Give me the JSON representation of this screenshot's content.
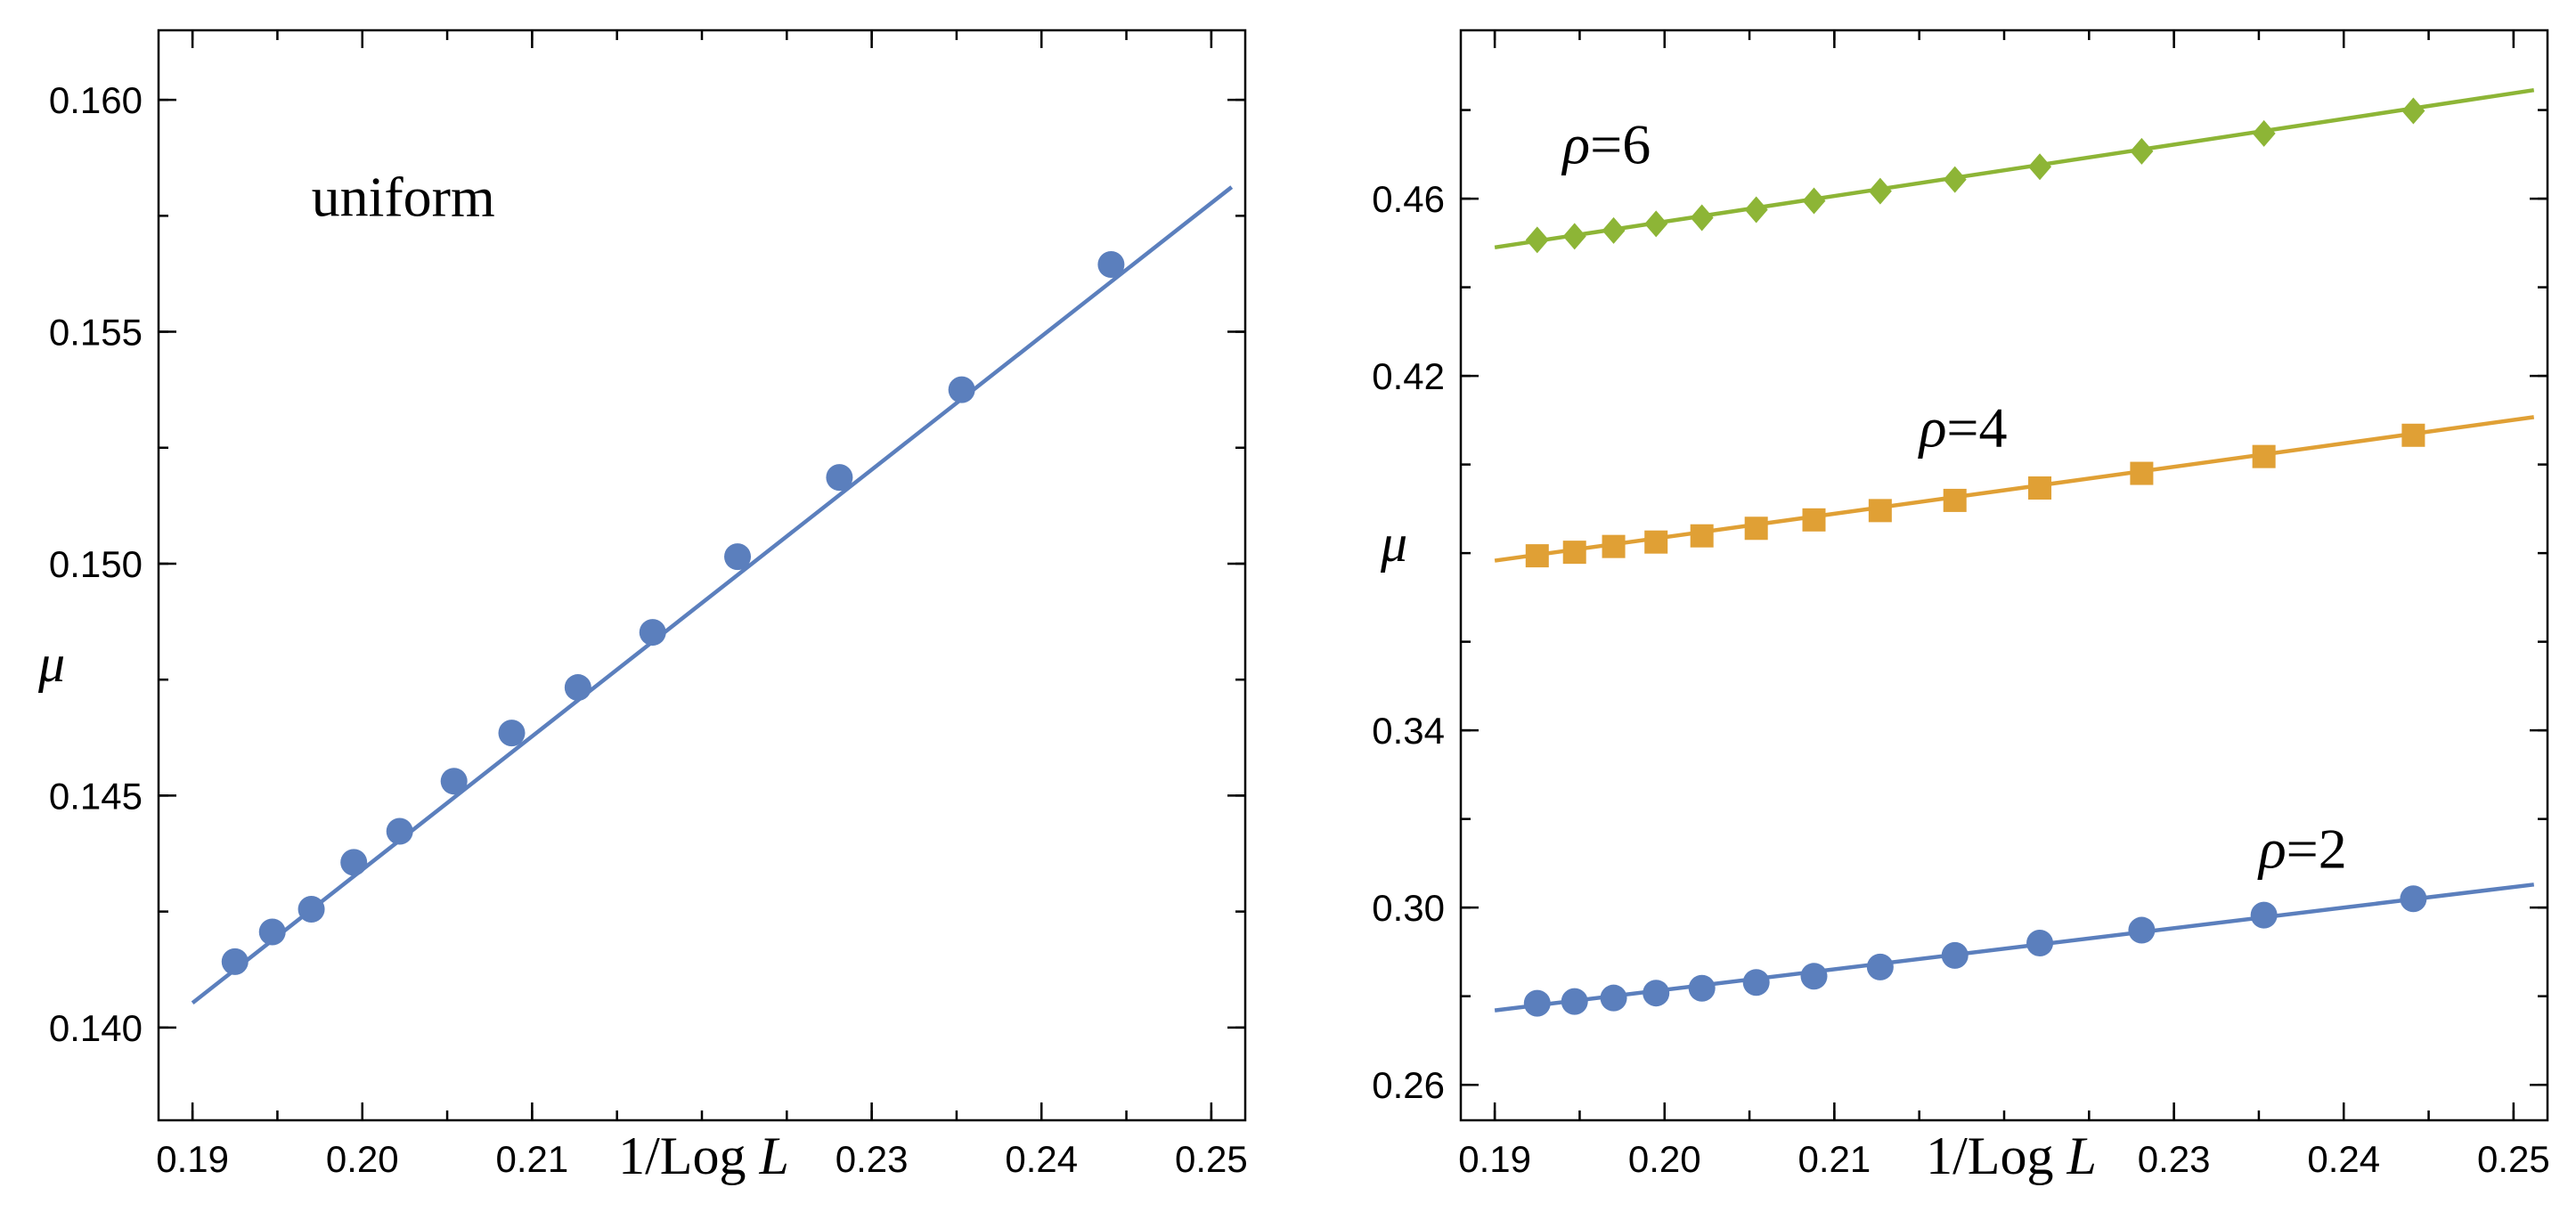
{
  "chart_data": [
    {
      "type": "scatter",
      "panel": "left",
      "xlabel": "1/Log L",
      "ylabel": "μ",
      "xlim": [
        0.188,
        0.252
      ],
      "ylim": [
        0.138,
        0.1615
      ],
      "x_ticks": [
        0.19,
        0.2,
        0.21,
        0.23,
        0.24,
        0.25
      ],
      "x_tick_labels": [
        "0.19",
        "0.20",
        "0.21",
        "0.23",
        "0.24",
        "0.25"
      ],
      "y_ticks": [
        0.14,
        0.145,
        0.15,
        0.155,
        0.16
      ],
      "y_tick_labels": [
        "0.140",
        "0.145",
        "0.150",
        "0.155",
        "0.160"
      ],
      "annotations": [
        {
          "text": "uniform",
          "x": 0.197,
          "y": 0.1575
        }
      ],
      "series": [
        {
          "name": "uniform",
          "color": "#5b7fbd",
          "marker": "circle",
          "x": [
            0.1925,
            0.1947,
            0.197,
            0.1995,
            0.2022,
            0.2054,
            0.2088,
            0.2127,
            0.2171,
            0.2221,
            0.2281,
            0.2353,
            0.2441
          ],
          "y": [
            0.14142,
            0.14206,
            0.14255,
            0.14356,
            0.14423,
            0.14531,
            0.14635,
            0.14733,
            0.14852,
            0.15015,
            0.15186,
            0.15375,
            0.15645
          ],
          "fit": {
            "x": [
              0.19,
              0.2512
            ],
            "y": [
              0.14053,
              0.15812
            ]
          }
        }
      ]
    },
    {
      "type": "scatter",
      "panel": "right",
      "xlabel": "1/Log L",
      "ylabel": "μ",
      "xlim": [
        0.188,
        0.252
      ],
      "ylim": [
        0.252,
        0.498
      ],
      "x_ticks": [
        0.19,
        0.2,
        0.21,
        0.23,
        0.24,
        0.25
      ],
      "x_tick_labels": [
        "0.19",
        "0.20",
        "0.21",
        "0.23",
        "0.24",
        "0.25"
      ],
      "y_ticks": [
        0.26,
        0.3,
        0.34,
        0.42,
        0.46
      ],
      "y_tick_labels": [
        "0.26",
        "0.30",
        "0.34",
        "0.42",
        "0.46"
      ],
      "annotations": [
        {
          "text": "ρ=6",
          "x": 0.194,
          "y": 0.468
        },
        {
          "text": "ρ=4",
          "x": 0.215,
          "y": 0.404
        },
        {
          "text": "ρ=2",
          "x": 0.235,
          "y": 0.309
        }
      ],
      "series": [
        {
          "name": "ρ=2",
          "color": "#5b7fbd",
          "marker": "circle",
          "x": [
            0.1925,
            0.1947,
            0.197,
            0.1995,
            0.2022,
            0.2054,
            0.2088,
            0.2127,
            0.2171,
            0.2221,
            0.2281,
            0.2353,
            0.2441
          ],
          "y": [
            0.2784,
            0.2788,
            0.2796,
            0.2807,
            0.2818,
            0.2831,
            0.2845,
            0.2866,
            0.2892,
            0.292,
            0.2949,
            0.2983,
            0.302
          ],
          "fit": {
            "x": [
              0.19,
              0.2512
            ],
            "y": [
              0.2768,
              0.3052
            ]
          }
        },
        {
          "name": "ρ=4",
          "color": "#e0a035",
          "marker": "square",
          "x": [
            0.1925,
            0.1947,
            0.197,
            0.1995,
            0.2022,
            0.2054,
            0.2088,
            0.2127,
            0.2171,
            0.2221,
            0.2281,
            0.2353,
            0.2441
          ],
          "y": [
            0.3794,
            0.3802,
            0.3815,
            0.3825,
            0.3839,
            0.3856,
            0.3875,
            0.3896,
            0.3919,
            0.3947,
            0.398,
            0.4018,
            0.4066
          ],
          "fit": {
            "x": [
              0.19,
              0.2512
            ],
            "y": [
              0.3783,
              0.4107
            ]
          }
        },
        {
          "name": "ρ=6",
          "color": "#8db536",
          "marker": "diamond",
          "x": [
            0.1925,
            0.1947,
            0.197,
            0.1995,
            0.2022,
            0.2054,
            0.2088,
            0.2127,
            0.2171,
            0.2221,
            0.2281,
            0.2353,
            0.2441
          ],
          "y": [
            0.4507,
            0.4515,
            0.4528,
            0.4543,
            0.4557,
            0.4575,
            0.4595,
            0.4617,
            0.4643,
            0.4672,
            0.4707,
            0.4747,
            0.4798
          ],
          "fit": {
            "x": [
              0.19,
              0.2512
            ],
            "y": [
              0.449,
              0.4845
            ]
          }
        }
      ]
    }
  ]
}
